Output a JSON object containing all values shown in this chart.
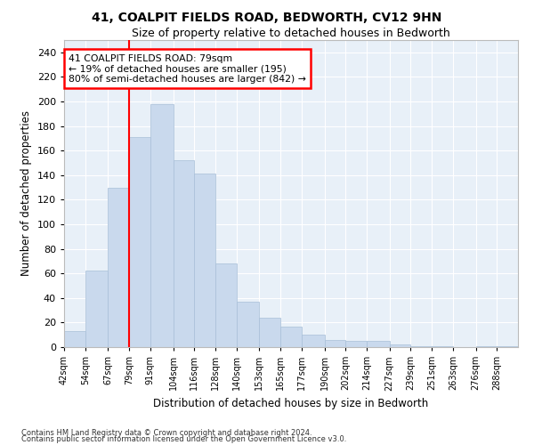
{
  "title": "41, COALPIT FIELDS ROAD, BEDWORTH, CV12 9HN",
  "subtitle": "Size of property relative to detached houses in Bedworth",
  "xlabel": "Distribution of detached houses by size in Bedworth",
  "ylabel": "Number of detached properties",
  "bar_color": "#c9d9ed",
  "bar_edge_color": "#a8bfd8",
  "background_color": "#e8f0f8",
  "grid_color": "#ffffff",
  "annotation_text_line1": "41 COALPIT FIELDS ROAD: 79sqm",
  "annotation_text_line2": "← 19% of detached houses are smaller (195)",
  "annotation_text_line3": "80% of semi-detached houses are larger (842) →",
  "categories": [
    "42sqm",
    "54sqm",
    "67sqm",
    "79sqm",
    "91sqm",
    "104sqm",
    "116sqm",
    "128sqm",
    "140sqm",
    "153sqm",
    "165sqm",
    "177sqm",
    "190sqm",
    "202sqm",
    "214sqm",
    "227sqm",
    "239sqm",
    "251sqm",
    "263sqm",
    "276sqm",
    "288sqm"
  ],
  "bin_edges": [
    42,
    54,
    67,
    79,
    91,
    104,
    116,
    128,
    140,
    153,
    165,
    177,
    190,
    202,
    214,
    227,
    239,
    251,
    263,
    276,
    288,
    300
  ],
  "bar_heights": [
    13,
    62,
    130,
    171,
    198,
    152,
    141,
    68,
    37,
    24,
    17,
    10,
    6,
    5,
    5,
    2,
    1,
    1,
    0,
    1,
    1
  ],
  "vline_x": 79,
  "ylim": [
    0,
    250
  ],
  "yticks": [
    0,
    20,
    40,
    60,
    80,
    100,
    120,
    140,
    160,
    180,
    200,
    220,
    240
  ],
  "footnote1": "Contains HM Land Registry data © Crown copyright and database right 2024.",
  "footnote2": "Contains public sector information licensed under the Open Government Licence v3.0."
}
